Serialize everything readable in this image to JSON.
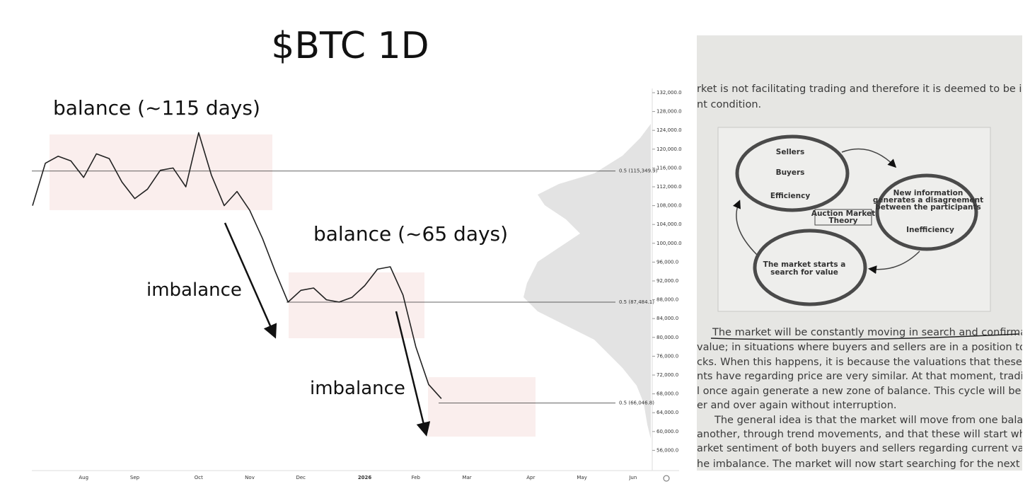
{
  "chart_data": {
    "type": "line",
    "title": "$BTC 1D",
    "annotations": [
      "balance (~115 days)",
      "balance (~65 days)",
      "imbalance",
      "imbalance"
    ],
    "categories": [
      null,
      null,
      null,
      null,
      "Aug",
      null,
      null,
      null,
      "Sep",
      null,
      null,
      null,
      null,
      "Oct",
      null,
      null,
      null,
      "Nov",
      null,
      null,
      null,
      "Dec",
      null,
      null,
      null,
      null,
      "2026",
      null,
      null,
      null,
      "Feb",
      null,
      null,
      null,
      "Mar",
      null,
      null,
      null,
      null,
      "Apr",
      null,
      null,
      null,
      "May",
      null,
      null,
      null,
      "Jun",
      null
    ],
    "values": [
      108000,
      117000,
      118500,
      117500,
      114000,
      119000,
      118000,
      113000,
      109500,
      111500,
      115500,
      116000,
      112000,
      123500,
      114500,
      108000,
      111000,
      107000,
      101000,
      94000,
      87500,
      90000,
      90500,
      88000,
      87500,
      88500,
      91000,
      94500,
      95000,
      89000,
      78000,
      70000,
      67000,
      null,
      null,
      null,
      null,
      null,
      null,
      null,
      null,
      null,
      null,
      null,
      null,
      null,
      null,
      null,
      null
    ],
    "color": "#222222",
    "ylim": [
      51700,
      132900
    ],
    "yticks": [
      {
        "value": 56000,
        "label": "56,000.0"
      },
      {
        "value": 60000,
        "label": "60,000.0"
      },
      {
        "value": 64000,
        "label": "64,000.0"
      },
      {
        "value": 68000,
        "label": "68,000.0"
      },
      {
        "value": 72000,
        "label": "72,000.0"
      },
      {
        "value": 76000,
        "label": "76,000.0"
      },
      {
        "value": 80000,
        "label": "80,000.0"
      },
      {
        "value": 84000,
        "label": "84,000.0"
      },
      {
        "value": 88000,
        "label": "88,000.0"
      },
      {
        "value": 92000,
        "label": "92,000.0"
      },
      {
        "value": 96000,
        "label": "96,000.0"
      },
      {
        "value": 100000,
        "label": "100,000.0"
      },
      {
        "value": 104000,
        "label": "104,000.0"
      },
      {
        "value": 108000,
        "label": "108,000.0"
      },
      {
        "value": 112000,
        "label": "112,000.0"
      },
      {
        "value": 116000,
        "label": "116,000.0"
      },
      {
        "value": 120000,
        "label": "120,000.0"
      },
      {
        "value": 124000,
        "label": "124,000.0"
      },
      {
        "value": 128000,
        "label": "128,000.0"
      },
      {
        "value": 132000,
        "label": "132,000.0"
      }
    ],
    "levels": [
      {
        "value": 115349.9,
        "label": "0.5 (115,349.9)"
      },
      {
        "value": 87484.1,
        "label": "0.5 (87,484.1)"
      },
      {
        "value": 66046.8,
        "label": "0.5 (66,046.8)"
      }
    ]
  },
  "photo": {
    "top_lines": [
      "rket is not facilitating trading and therefore it is deemed to be in an ineff",
      "nt condition."
    ],
    "diagram": {
      "nodes": [
        "Sellers",
        "Buyers",
        "Efficiency",
        "New information",
        "generates a disagreement",
        "between the participants",
        "Inefficiency",
        "The market starts a",
        "search for value"
      ],
      "center": [
        "Auction Market",
        "Theory"
      ]
    },
    "paragraph1": [
      "The market will be constantly moving in search and confirmation o",
      "value; in situations where buyers and sellers are in a position to exchang",
      "cks. When this happens, it is because the valuations that these partic",
      "nts have regarding price are very similar. At that moment, trading activit",
      "l once again generate a new zone of balance. This cycle will be repeate",
      "er and over again without interruption."
    ],
    "paragraph2": [
      "The general idea is that the market will move from one balance zon",
      "another, through trend movements, and that these will start when th",
      "arket sentiment of both buyers and sellers regarding current value differ",
      "he imbalance. The market will now start searching for the next are"
    ]
  }
}
